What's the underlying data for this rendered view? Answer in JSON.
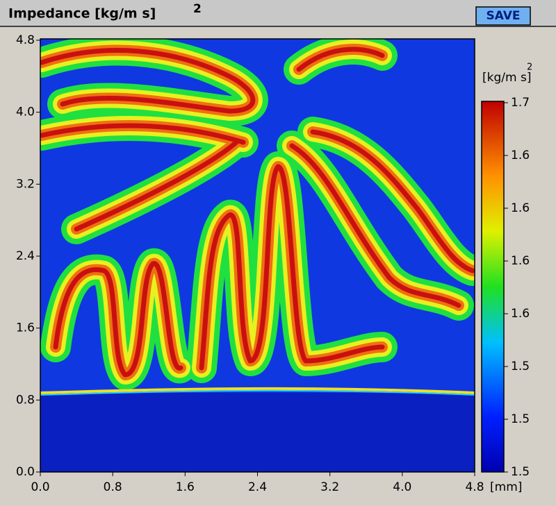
{
  "chart_data": {
    "type": "heatmap",
    "title": "Impedance [kg/m s]",
    "title_superscript": "2",
    "button": "SAVE",
    "x_unit": "[mm]",
    "colorbar_label": "[kg/m s]",
    "colorbar_superscript": "2",
    "xlim": [
      0,
      4.8
    ],
    "xticks": [
      {
        "value": 0,
        "label": "0.0"
      },
      0.8,
      1.6,
      2.4,
      3.2,
      {
        "value": 4,
        "label": "4.0"
      },
      4.8
    ],
    "ylim": [
      0,
      4.8
    ],
    "yticks": [
      {
        "value": 0,
        "label": "0.0"
      },
      0.8,
      1.6,
      2.4,
      3.2,
      {
        "value": 4,
        "label": "4.0"
      },
      4.8
    ],
    "clim": [
      1.496,
      1.65
    ],
    "cticks": [
      {
        "value": 1.65,
        "label": "1.7"
      },
      {
        "value": 1.628,
        "label": "1.6"
      },
      {
        "value": 1.606,
        "label": "1.6"
      },
      {
        "value": 1.584,
        "label": "1.6"
      },
      {
        "value": 1.562,
        "label": "1.6"
      },
      {
        "value": 1.54,
        "label": "1.5"
      },
      {
        "value": 1.518,
        "label": "1.5"
      },
      {
        "value": 1.496,
        "label": "1.5"
      }
    ]
  }
}
